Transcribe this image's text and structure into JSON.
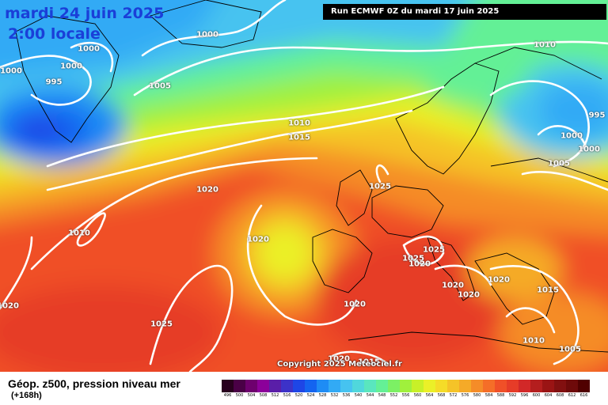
{
  "header": {
    "valid_date": "mardi 24 juin 2025",
    "valid_time": "2:00 locale",
    "run_info": "Run ECMWF 0Z du mardi 17 juin 2025"
  },
  "copyright": "Copyright 2025 Meteociel.fr",
  "footer": {
    "title": "Géop. z500, pression niveau mer",
    "forecast_hour": "(+168h)"
  },
  "isobar_labels": [
    "1000",
    "1000",
    "1000",
    "995",
    "1005",
    "1000",
    "1010",
    "1015",
    "1020",
    "1010",
    "1020",
    "1020",
    "1025",
    "1025",
    "1025",
    "1020",
    "1020",
    "1020",
    "1020",
    "1020",
    "1025",
    "1020",
    "1015",
    "1010",
    "1005",
    "1010",
    "1000",
    "995",
    "1000",
    "1005",
    "1015"
  ],
  "legend": {
    "values": [
      "496",
      "500",
      "504",
      "508",
      "512",
      "516",
      "520",
      "524",
      "528",
      "532",
      "536",
      "540",
      "544",
      "548",
      "552",
      "556",
      "560",
      "564",
      "568",
      "572",
      "576",
      "580",
      "584",
      "588",
      "592",
      "596",
      "600",
      "604",
      "608",
      "612",
      "616"
    ],
    "colors": [
      "#28001e",
      "#4a0046",
      "#6e006e",
      "#8c009a",
      "#5a1ea8",
      "#3c32c8",
      "#1e46e6",
      "#1464f0",
      "#1e8cf5",
      "#32aaf5",
      "#46c3f0",
      "#50d7dc",
      "#5ae6be",
      "#64f096",
      "#7cf064",
      "#a0f03c",
      "#c8f028",
      "#ebf028",
      "#f5dc28",
      "#f5c328",
      "#f5aa28",
      "#f58c28",
      "#f56e28",
      "#f05028",
      "#e63c28",
      "#d22828",
      "#b41e1e",
      "#9a1414",
      "#821010",
      "#6e0a0a",
      "#500000"
    ]
  },
  "colors": {
    "header_text": "#1a3fd8",
    "isobar": "#ffffff",
    "coastline": "#000000"
  }
}
